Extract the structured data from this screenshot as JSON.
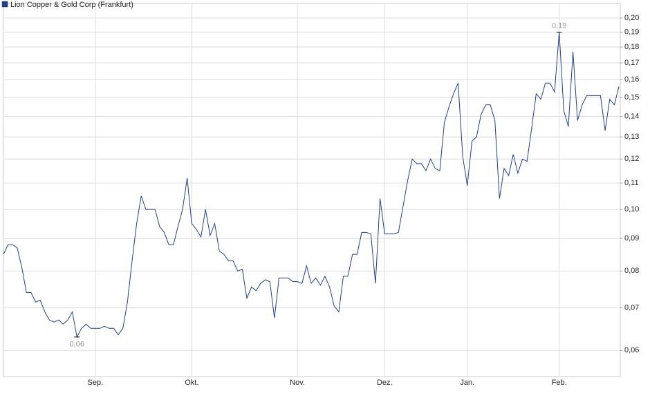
{
  "chart_data": {
    "type": "line",
    "series": [
      {
        "name": "Lion Copper & Gold Corp (Frankfurt)",
        "color": "#1c3f8c",
        "values": [
          0.085,
          0.088,
          0.088,
          0.087,
          0.081,
          0.074,
          0.074,
          0.0715,
          0.072,
          0.069,
          0.067,
          0.0665,
          0.067,
          0.066,
          0.067,
          0.069,
          0.063,
          0.065,
          0.066,
          0.065,
          0.065,
          0.065,
          0.0655,
          0.065,
          0.065,
          0.0635,
          0.065,
          0.0715,
          0.083,
          0.095,
          0.105,
          0.1,
          0.1,
          0.1,
          0.094,
          0.092,
          0.088,
          0.088,
          0.094,
          0.1,
          0.112,
          0.095,
          0.093,
          0.0905,
          0.1,
          0.091,
          0.095,
          0.086,
          0.085,
          0.083,
          0.083,
          0.08,
          0.0805,
          0.0725,
          0.0755,
          0.0745,
          0.0765,
          0.0775,
          0.077,
          0.0675,
          0.078,
          0.078,
          0.078,
          0.077,
          0.077,
          0.0765,
          0.0815,
          0.0765,
          0.078,
          0.076,
          0.0785,
          0.0755,
          0.0705,
          0.069,
          0.0785,
          0.0785,
          0.085,
          0.085,
          0.092,
          0.092,
          0.0915,
          0.0765,
          0.104,
          0.0915,
          0.0915,
          0.0915,
          0.092,
          0.101,
          0.111,
          0.12,
          0.118,
          0.118,
          0.115,
          0.12,
          0.116,
          0.115,
          0.137,
          0.145,
          0.152,
          0.158,
          0.121,
          0.109,
          0.128,
          0.13,
          0.141,
          0.146,
          0.146,
          0.138,
          0.104,
          0.116,
          0.113,
          0.122,
          0.114,
          0.12,
          0.119,
          0.134,
          0.152,
          0.149,
          0.158,
          0.158,
          0.153,
          0.19,
          0.143,
          0.135,
          0.177,
          0.138,
          0.146,
          0.151,
          0.151,
          0.151,
          0.151,
          0.133,
          0.149,
          0.146,
          0.156
        ],
        "value_labels": [
          null,
          null,
          null,
          null,
          null,
          null,
          null,
          null,
          null,
          null,
          null,
          null,
          null,
          null,
          null,
          null,
          "0,06",
          null,
          null,
          null,
          null,
          null,
          null,
          null,
          null,
          null,
          null,
          null,
          null,
          null,
          null,
          null,
          null,
          null,
          null,
          null,
          null,
          null,
          null,
          null,
          null,
          null,
          null,
          null,
          null,
          null,
          null,
          null,
          null,
          null,
          null,
          null,
          null,
          null,
          null,
          null,
          null,
          null,
          null,
          null,
          null,
          null,
          null,
          null,
          null,
          null,
          null,
          null,
          null,
          null,
          null,
          null,
          null,
          null,
          null,
          null,
          null,
          null,
          null,
          null,
          null,
          null,
          null,
          null,
          null,
          null,
          null,
          null,
          null,
          null,
          null,
          null,
          null,
          null,
          null,
          null,
          null,
          null,
          null,
          null,
          null,
          null,
          null,
          null,
          null,
          null,
          null,
          null,
          null,
          null,
          null,
          null,
          null,
          null,
          null,
          null,
          null,
          null,
          null,
          null,
          null,
          "0,19",
          null,
          null,
          null,
          null,
          null,
          null,
          null,
          null,
          null,
          null,
          null,
          null,
          null
        ]
      }
    ],
    "categories": [
      null,
      null,
      null,
      null,
      null,
      null,
      null,
      null,
      null,
      null,
      null,
      null,
      null,
      null,
      null,
      null,
      null,
      null,
      null,
      null,
      "Sep.",
      null,
      null,
      null,
      null,
      null,
      null,
      null,
      null,
      null,
      null,
      null,
      null,
      null,
      null,
      null,
      null,
      null,
      null,
      null,
      null,
      "Okt.",
      null,
      null,
      null,
      null,
      null,
      null,
      null,
      null,
      null,
      null,
      null,
      null,
      null,
      null,
      null,
      null,
      null,
      null,
      null,
      null,
      null,
      null,
      "Nov.",
      null,
      null,
      null,
      null,
      null,
      null,
      null,
      null,
      null,
      null,
      null,
      null,
      null,
      null,
      null,
      null,
      null,
      null,
      "Dez.",
      null,
      null,
      null,
      null,
      null,
      null,
      null,
      null,
      null,
      null,
      null,
      null,
      null,
      null,
      null,
      null,
      null,
      "Jan.",
      null,
      null,
      null,
      null,
      null,
      null,
      null,
      null,
      null,
      null,
      null,
      null,
      null,
      null,
      null,
      null,
      null,
      null,
      null,
      "Feb.",
      null,
      null,
      null,
      null,
      null,
      null,
      null,
      null,
      null,
      null,
      null,
      null,
      null
    ],
    "ylim": [
      0.0546,
      0.2108
    ],
    "log_scale": true,
    "grid": true,
    "yticks": [
      {
        "value": 0.06,
        "label": "0,06"
      },
      {
        "value": 0.07,
        "label": "0,07"
      },
      {
        "value": 0.08,
        "label": "0,08"
      },
      {
        "value": 0.09,
        "label": "0,09"
      },
      {
        "value": 0.1,
        "label": "0,10"
      },
      {
        "value": 0.11,
        "label": "0,11"
      },
      {
        "value": 0.12,
        "label": "0,12"
      },
      {
        "value": 0.13,
        "label": "0,13"
      },
      {
        "value": 0.14,
        "label": "0,14"
      },
      {
        "value": 0.15,
        "label": "0,15"
      },
      {
        "value": 0.16,
        "label": "0,16"
      },
      {
        "value": 0.17,
        "label": "0,17"
      },
      {
        "value": 0.18,
        "label": "0,18"
      },
      {
        "value": 0.19,
        "label": "0,19"
      },
      {
        "value": 0.2,
        "label": "0,20"
      }
    ]
  }
}
